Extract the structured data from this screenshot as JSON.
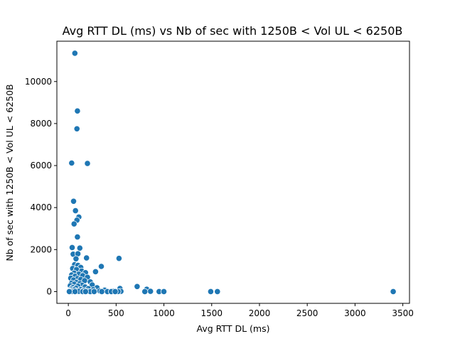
{
  "chart_data": {
    "type": "scatter",
    "title": "Avg RTT DL (ms) vs Nb of sec with 1250B < Vol UL < 6250B",
    "xlabel": "Avg RTT DL (ms)",
    "ylabel": "Nb of sec with 1250B < Vol UL < 6250B",
    "xlim": [
      -120,
      3570
    ],
    "ylim": [
      -560,
      11920
    ],
    "x_ticks": [
      0,
      500,
      1000,
      1500,
      2000,
      2500,
      3000,
      3500
    ],
    "x_tick_labels": [
      "0",
      "500",
      "1000",
      "1500",
      "2000",
      "2500",
      "3000",
      "3500"
    ],
    "y_ticks": [
      0,
      2000,
      4000,
      6000,
      8000,
      10000
    ],
    "y_tick_labels": [
      "0",
      "2000",
      "4000",
      "6000",
      "8000",
      "10000"
    ],
    "grid": false,
    "legend": "none",
    "color": "#1f77b4",
    "points": [
      [
        68,
        11350
      ],
      [
        95,
        8600
      ],
      [
        90,
        7750
      ],
      [
        35,
        6120
      ],
      [
        200,
        6100
      ],
      [
        55,
        4300
      ],
      [
        75,
        3850
      ],
      [
        110,
        3550
      ],
      [
        90,
        3400
      ],
      [
        60,
        3220
      ],
      [
        95,
        2600
      ],
      [
        40,
        2100
      ],
      [
        120,
        2070
      ],
      [
        50,
        1780
      ],
      [
        100,
        1800
      ],
      [
        190,
        1600
      ],
      [
        530,
        1580
      ],
      [
        80,
        1560
      ],
      [
        345,
        1200
      ],
      [
        65,
        1280
      ],
      [
        100,
        1250
      ],
      [
        130,
        1150
      ],
      [
        45,
        1100
      ],
      [
        85,
        1050
      ],
      [
        140,
        980
      ],
      [
        285,
        950
      ],
      [
        180,
        900
      ],
      [
        60,
        880
      ],
      [
        110,
        830
      ],
      [
        35,
        790
      ],
      [
        150,
        760
      ],
      [
        70,
        730
      ],
      [
        200,
        680
      ],
      [
        25,
        640
      ],
      [
        95,
        620
      ],
      [
        130,
        580
      ],
      [
        55,
        550
      ],
      [
        170,
        520
      ],
      [
        230,
        460
      ],
      [
        85,
        430
      ],
      [
        35,
        400
      ],
      [
        120,
        380
      ],
      [
        60,
        350
      ],
      [
        250,
        320
      ],
      [
        145,
        300
      ],
      [
        20,
        280
      ],
      [
        100,
        260
      ],
      [
        720,
        240
      ],
      [
        175,
        220
      ],
      [
        45,
        200
      ],
      [
        300,
        180
      ],
      [
        80,
        160
      ],
      [
        540,
        150
      ],
      [
        210,
        140
      ],
      [
        30,
        120
      ],
      [
        820,
        110
      ],
      [
        130,
        100
      ],
      [
        260,
        90
      ],
      [
        60,
        80
      ],
      [
        380,
        70
      ],
      [
        160,
        60
      ],
      [
        25,
        50
      ],
      [
        95,
        40
      ],
      [
        330,
        30
      ],
      [
        470,
        25
      ],
      [
        200,
        20
      ],
      [
        15,
        15
      ],
      [
        110,
        10
      ],
      [
        550,
        10
      ],
      [
        860,
        10
      ],
      [
        40,
        5
      ],
      [
        520,
        5
      ],
      [
        70,
        0
      ],
      [
        150,
        0
      ],
      [
        230,
        0
      ],
      [
        350,
        0
      ],
      [
        410,
        0
      ],
      [
        450,
        0
      ],
      [
        490,
        0
      ],
      [
        800,
        0
      ],
      [
        950,
        0
      ],
      [
        1000,
        0
      ],
      [
        1490,
        0
      ],
      [
        1560,
        0
      ],
      [
        3400,
        0
      ],
      [
        10,
        0
      ],
      [
        180,
        0
      ],
      [
        270,
        0
      ]
    ]
  }
}
